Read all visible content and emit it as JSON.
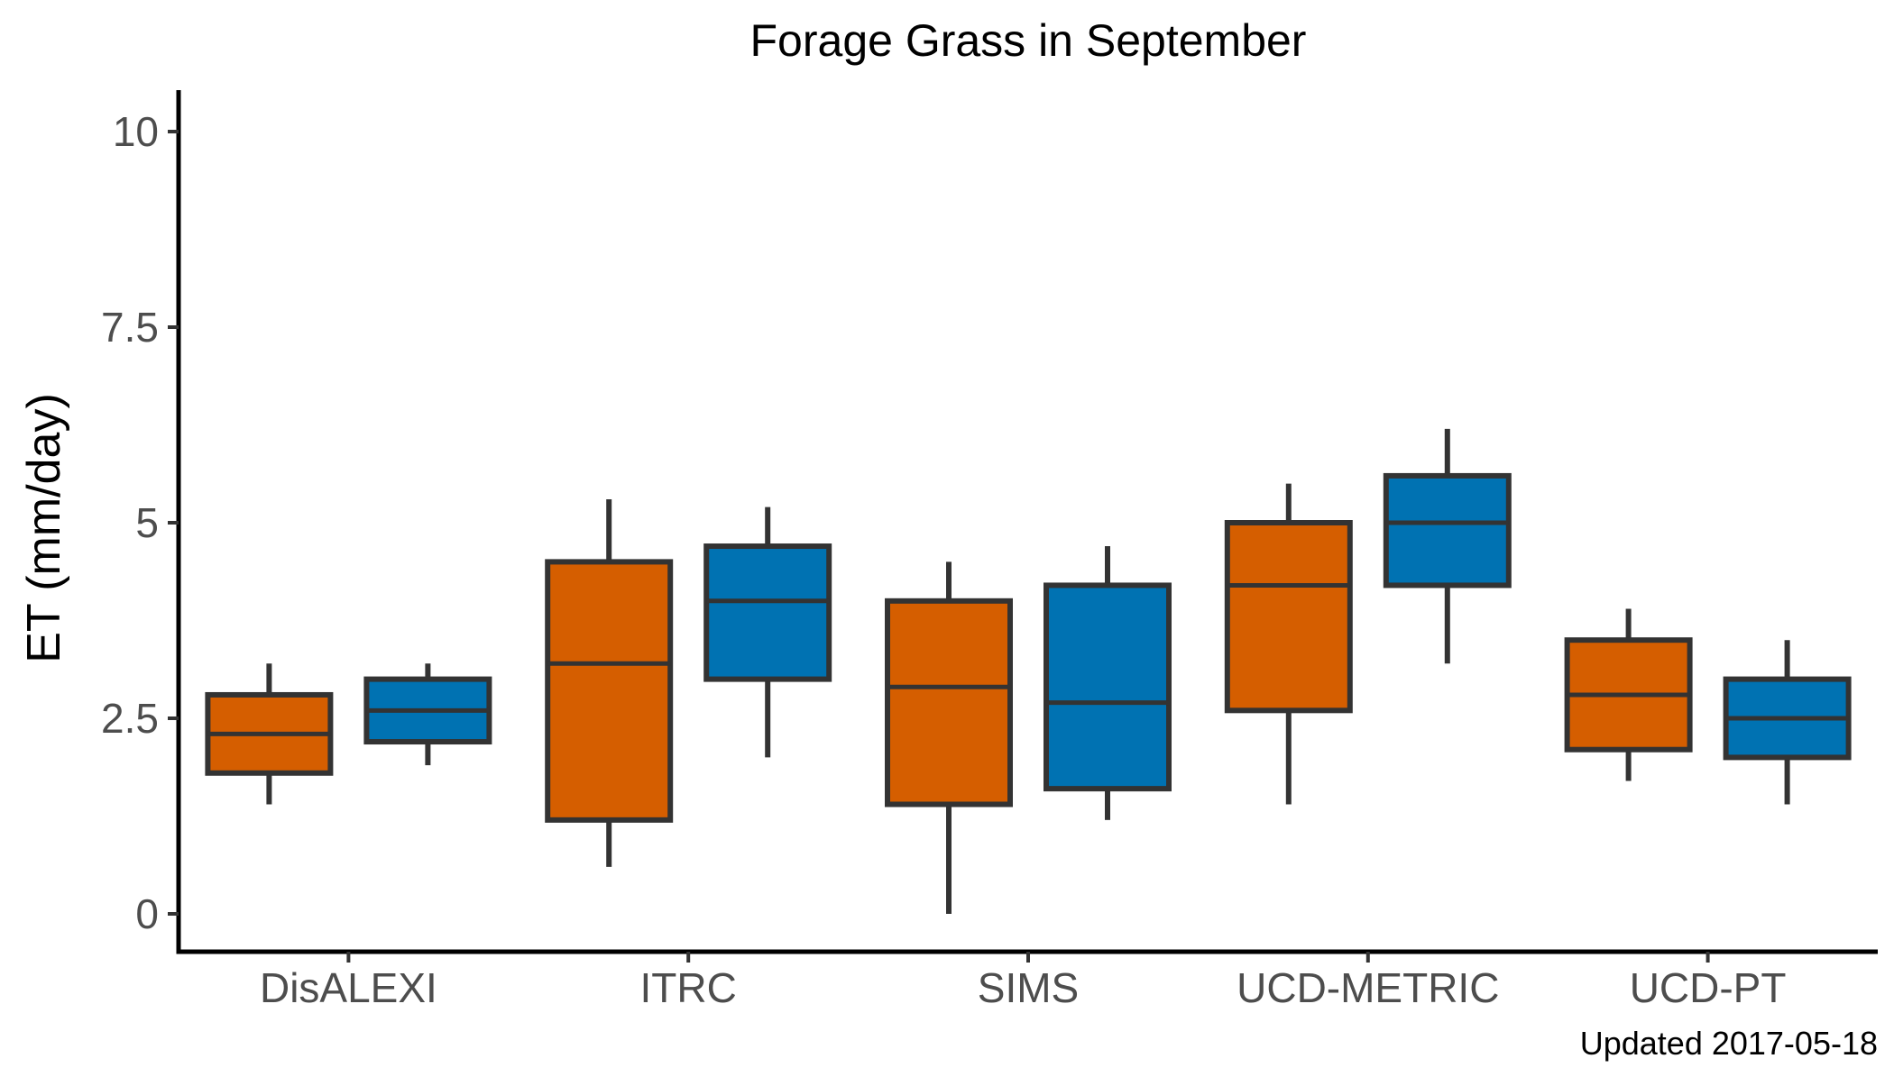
{
  "chart_data": {
    "type": "boxplot",
    "title": "Forage Grass in September",
    "xlabel": "",
    "ylabel": "ET (mm/day)",
    "caption": "Updated  2017-05-18",
    "ylim": [
      -0.5,
      10.5
    ],
    "yticks": [
      0,
      2.5,
      5,
      7.5,
      10
    ],
    "ytick_labels": [
      "0",
      "2.5",
      "5",
      "7.5",
      "10"
    ],
    "grid": false,
    "legend": "none",
    "categories": [
      "DisALEXI",
      "ITRC",
      "SIMS",
      "UCD-METRIC",
      "UCD-PT"
    ],
    "series": [
      {
        "color": "#D55E00",
        "boxes": [
          {
            "whisker_low": 1.4,
            "q1": 1.8,
            "median": 2.3,
            "q3": 2.8,
            "whisker_high": 3.2
          },
          {
            "whisker_low": 0.6,
            "q1": 1.2,
            "median": 3.2,
            "q3": 4.5,
            "whisker_high": 5.3
          },
          {
            "whisker_low": 0.0,
            "q1": 1.4,
            "median": 2.9,
            "q3": 4.0,
            "whisker_high": 4.5
          },
          {
            "whisker_low": 1.4,
            "q1": 2.6,
            "median": 4.2,
            "q3": 5.0,
            "whisker_high": 5.5
          },
          {
            "whisker_low": 1.7,
            "q1": 2.1,
            "median": 2.8,
            "q3": 3.5,
            "whisker_high": 3.9
          }
        ]
      },
      {
        "color": "#0072B2",
        "boxes": [
          {
            "whisker_low": 1.9,
            "q1": 2.2,
            "median": 2.6,
            "q3": 3.0,
            "whisker_high": 3.2
          },
          {
            "whisker_low": 2.0,
            "q1": 3.0,
            "median": 4.0,
            "q3": 4.7,
            "whisker_high": 5.2
          },
          {
            "whisker_low": 1.2,
            "q1": 1.6,
            "median": 2.7,
            "q3": 4.2,
            "whisker_high": 4.7
          },
          {
            "whisker_low": 3.2,
            "q1": 4.2,
            "median": 5.0,
            "q3": 5.6,
            "whisker_high": 6.2
          },
          {
            "whisker_low": 1.4,
            "q1": 2.0,
            "median": 2.5,
            "q3": 3.0,
            "whisker_high": 3.5
          }
        ]
      }
    ],
    "colors": {
      "box_outline": "#333333",
      "axis": "#000000"
    }
  }
}
